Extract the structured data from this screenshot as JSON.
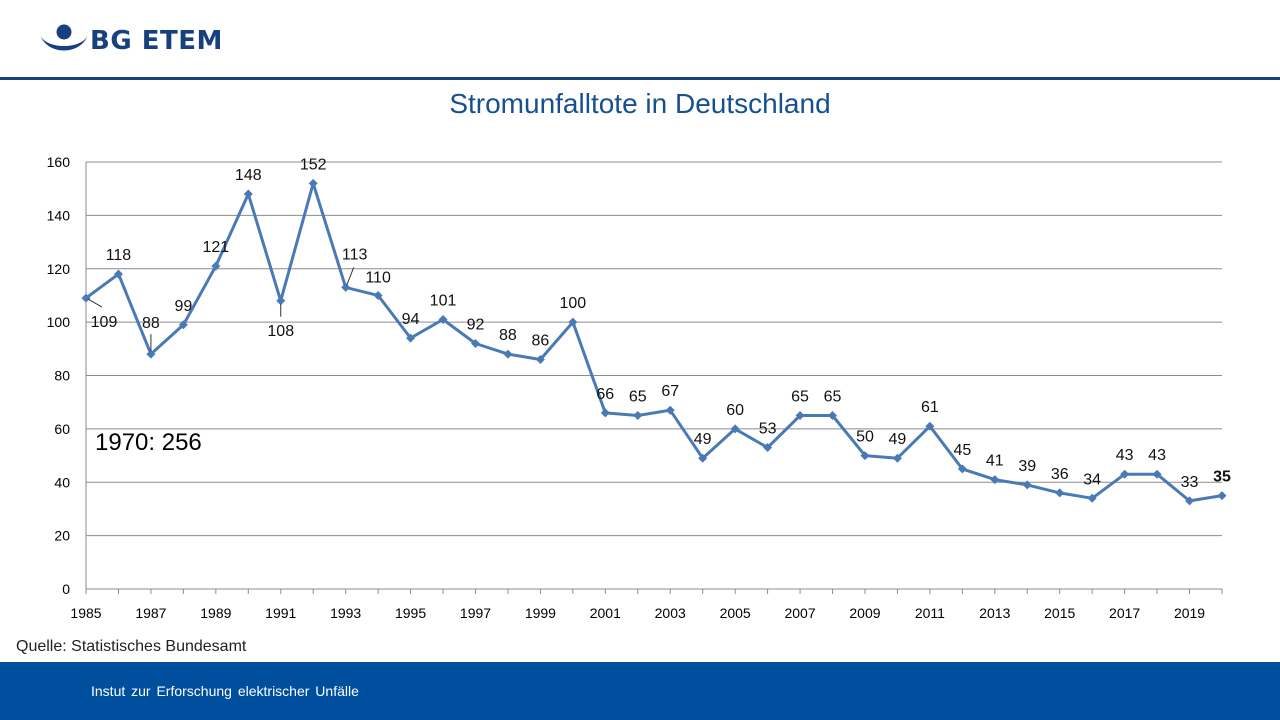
{
  "header": {
    "logo_text": "BG ETEM",
    "brand_color": "#16407e"
  },
  "source_text": "Quelle: Statistisches Bundesamt",
  "footer": {
    "text": "Instut zur Erforschung elektrischer Unfälle",
    "color": "#004f9f"
  },
  "chart_data": {
    "type": "line",
    "title": "Stromunfalltote in Deutschland",
    "xlabel": "",
    "ylabel": "",
    "ylim": [
      0,
      160
    ],
    "yticks": [
      0,
      20,
      40,
      60,
      80,
      100,
      120,
      140,
      160
    ],
    "xlim": [
      1985,
      2020
    ],
    "xticks": [
      1985,
      1987,
      1989,
      1991,
      1993,
      1995,
      1997,
      1999,
      2001,
      2003,
      2005,
      2007,
      2009,
      2011,
      2013,
      2015,
      2017,
      2019
    ],
    "grid": true,
    "legend": "none",
    "line_color": "#4a7ab5",
    "x": [
      1985,
      1986,
      1987,
      1988,
      1989,
      1990,
      1991,
      1992,
      1993,
      1994,
      1995,
      1996,
      1997,
      1998,
      1999,
      2000,
      2001,
      2002,
      2003,
      2004,
      2005,
      2006,
      2007,
      2008,
      2009,
      2010,
      2011,
      2012,
      2013,
      2014,
      2015,
      2016,
      2017,
      2018,
      2019,
      2020
    ],
    "values": [
      109,
      118,
      88,
      99,
      121,
      148,
      108,
      152,
      113,
      110,
      94,
      101,
      92,
      88,
      86,
      100,
      66,
      65,
      67,
      49,
      60,
      53,
      65,
      65,
      50,
      49,
      61,
      45,
      41,
      39,
      36,
      34,
      43,
      43,
      33,
      35
    ],
    "annotation": "1970: 256"
  }
}
